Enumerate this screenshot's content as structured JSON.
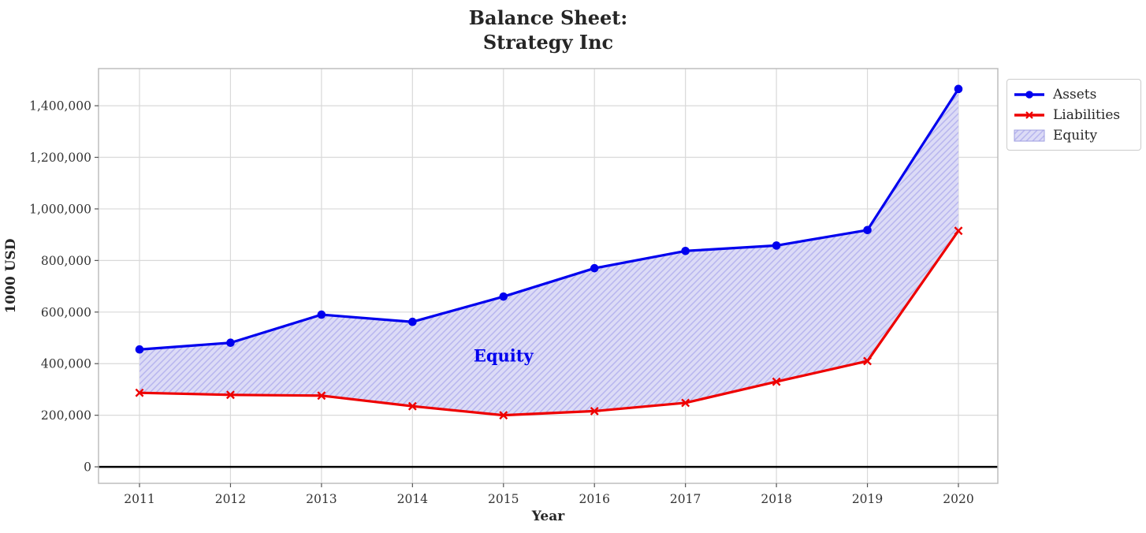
{
  "title_lines": [
    "Balance Sheet:",
    "Strategy Inc"
  ],
  "chart_data": {
    "type": "line",
    "title": "Balance Sheet: Strategy Inc",
    "categories": [
      "2011",
      "2012",
      "2013",
      "2014",
      "2015",
      "2016",
      "2017",
      "2018",
      "2019",
      "2020"
    ],
    "series": [
      {
        "name": "Assets",
        "color": "#0000ee",
        "marker": "circle",
        "values": [
          455000,
          481000,
          590000,
          562000,
          660000,
          770000,
          837000,
          858000,
          918000,
          1465000
        ]
      },
      {
        "name": "Liabilities",
        "color": "#ee0000",
        "marker": "x",
        "values": [
          287000,
          279000,
          276000,
          235000,
          200000,
          216000,
          248000,
          330000,
          410000,
          915000
        ]
      }
    ],
    "fill_between": {
      "label": "Equity",
      "between": [
        "Assets",
        "Liabilities"
      ],
      "facecolor": "#dcdbf6",
      "hatch": "//",
      "hatch_color": "#b7b5ee"
    },
    "xlabel": "Year",
    "ylabel": "1000 USD",
    "ylim": [
      -64000,
      1544000
    ],
    "yticks": [
      0,
      200000,
      400000,
      600000,
      800000,
      1000000,
      1200000,
      1400000
    ],
    "ytick_labels": [
      "0",
      "200,000",
      "400,000",
      "600,000",
      "800,000",
      "1,000,000",
      "1,200,000",
      "1,400,000"
    ],
    "grid": true,
    "zero_line": true,
    "legend_position": "upper right",
    "annotation": {
      "text": "Equity",
      "color": "#0000ee",
      "x_category": "2015",
      "y": 430000
    }
  }
}
